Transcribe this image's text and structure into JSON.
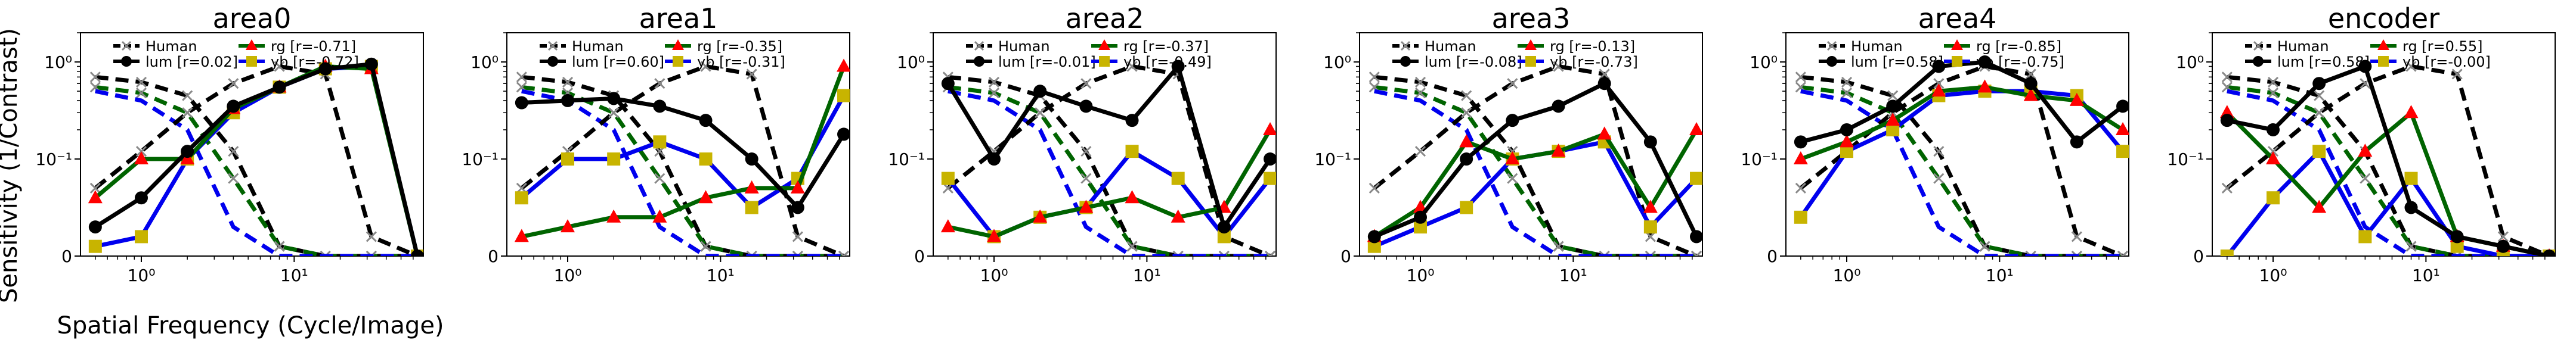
{
  "figure": {
    "ylabel": "Sensitivity (1/Contrast)",
    "xlabel": "Spatial Frequency (Cycle/Image)"
  },
  "style": {
    "human_color": "#000000",
    "human_marker_color": "#888888",
    "lum_color": "#000000",
    "rg_color": "#006400",
    "rg_marker_color": "#ff0000",
    "yb_color": "#0000ee",
    "yb_marker_color": "#c8b400"
  },
  "chart_data": [
    {
      "type": "line",
      "title": "area0",
      "x_scale": "log",
      "y_scale": "symlog",
      "xlim": [
        0.4,
        70
      ],
      "ylim": [
        0,
        2
      ],
      "ytick_labels": [
        "0",
        "10⁻¹",
        "10⁰"
      ],
      "xtick_labels": [
        "10⁰",
        "10¹"
      ],
      "x": [
        0.5,
        1,
        2,
        4,
        8,
        16,
        32,
        64
      ],
      "series": [
        {
          "name": "Human",
          "kind": "human",
          "values": [
            0.07,
            0.12,
            0.3,
            0.6,
            0.9,
            0.75,
            0.02,
            0.0
          ]
        },
        {
          "name": "lum_achrom",
          "kind": "human_lum",
          "values": [
            0.7,
            0.62,
            0.45,
            0.12,
            0.01,
            0.0,
            0.0,
            0.0
          ]
        },
        {
          "name": "rg_human",
          "kind": "human_rg",
          "values": [
            0.55,
            0.48,
            0.3,
            0.08,
            0.01,
            0.0,
            0.0,
            0.0
          ]
        },
        {
          "name": "yb_human",
          "kind": "human_yb",
          "values": [
            0.5,
            0.4,
            0.2,
            0.03,
            0.0,
            0.0,
            0.0,
            0.0
          ]
        },
        {
          "name": "lum [r=0.02]",
          "kind": "lum",
          "values": [
            0.03,
            0.06,
            0.12,
            0.35,
            0.55,
            0.85,
            0.95,
            0.0
          ]
        },
        {
          "name": "rg    [r=-0.71]",
          "kind": "rg",
          "values": [
            0.06,
            0.1,
            0.1,
            0.33,
            0.55,
            0.9,
            0.85,
            0.0
          ]
        },
        {
          "name": "yb    [r=-0.72]",
          "kind": "yb",
          "values": [
            0.01,
            0.02,
            0.1,
            0.3,
            0.55,
            0.85,
            0.9,
            0.0
          ]
        }
      ]
    },
    {
      "type": "line",
      "title": "area1",
      "x_scale": "log",
      "y_scale": "symlog",
      "xlim": [
        0.4,
        70
      ],
      "ylim": [
        0,
        2
      ],
      "ytick_labels": [
        "0",
        "10⁻¹",
        "10⁰"
      ],
      "xtick_labels": [
        "10⁰",
        "10¹"
      ],
      "x": [
        0.5,
        1,
        2,
        4,
        8,
        16,
        32,
        64
      ],
      "series": [
        {
          "name": "Human",
          "kind": "human",
          "values": [
            0.07,
            0.12,
            0.3,
            0.6,
            0.9,
            0.75,
            0.02,
            0.0
          ]
        },
        {
          "name": "lum_achrom",
          "kind": "human_lum",
          "values": [
            0.7,
            0.62,
            0.45,
            0.12,
            0.01,
            0.0,
            0.0,
            0.0
          ]
        },
        {
          "name": "rg_human",
          "kind": "human_rg",
          "values": [
            0.55,
            0.48,
            0.3,
            0.08,
            0.01,
            0.0,
            0.0,
            0.0
          ]
        },
        {
          "name": "yb_human",
          "kind": "human_yb",
          "values": [
            0.5,
            0.4,
            0.2,
            0.03,
            0.0,
            0.0,
            0.0,
            0.0
          ]
        },
        {
          "name": "lum [r=0.60]",
          "kind": "lum",
          "values": [
            0.38,
            0.4,
            0.42,
            0.35,
            0.25,
            0.1,
            0.05,
            0.18
          ]
        },
        {
          "name": "rg    [r=-0.35]",
          "kind": "rg",
          "values": [
            0.02,
            0.03,
            0.04,
            0.04,
            0.06,
            0.07,
            0.07,
            0.9
          ]
        },
        {
          "name": "yb    [r=-0.31]",
          "kind": "yb",
          "values": [
            0.06,
            0.1,
            0.1,
            0.15,
            0.1,
            0.05,
            0.08,
            0.45
          ]
        }
      ]
    },
    {
      "type": "line",
      "title": "area2",
      "x_scale": "log",
      "y_scale": "symlog",
      "xlim": [
        0.4,
        70
      ],
      "ylim": [
        0,
        2
      ],
      "ytick_labels": [
        "0",
        "10⁻¹",
        "10⁰"
      ],
      "xtick_labels": [
        "10⁰",
        "10¹"
      ],
      "x": [
        0.5,
        1,
        2,
        4,
        8,
        16,
        32,
        64
      ],
      "series": [
        {
          "name": "Human",
          "kind": "human",
          "values": [
            0.07,
            0.12,
            0.3,
            0.6,
            0.9,
            0.75,
            0.02,
            0.0
          ]
        },
        {
          "name": "lum_achrom",
          "kind": "human_lum",
          "values": [
            0.7,
            0.62,
            0.45,
            0.12,
            0.01,
            0.0,
            0.0,
            0.0
          ]
        },
        {
          "name": "rg_human",
          "kind": "human_rg",
          "values": [
            0.55,
            0.48,
            0.3,
            0.08,
            0.01,
            0.0,
            0.0,
            0.0
          ]
        },
        {
          "name": "yb_human",
          "kind": "human_yb",
          "values": [
            0.5,
            0.4,
            0.2,
            0.03,
            0.0,
            0.0,
            0.0,
            0.0
          ]
        },
        {
          "name": "lum [r=-0.01]",
          "kind": "lum",
          "values": [
            0.6,
            0.1,
            0.5,
            0.35,
            0.25,
            0.9,
            0.03,
            0.1
          ]
        },
        {
          "name": "rg    [r=-0.37]",
          "kind": "rg",
          "values": [
            0.03,
            0.02,
            0.04,
            0.05,
            0.06,
            0.04,
            0.05,
            0.2
          ]
        },
        {
          "name": "yb    [r=-0.49]",
          "kind": "yb",
          "values": [
            0.08,
            0.02,
            0.04,
            0.05,
            0.12,
            0.08,
            0.02,
            0.08
          ]
        }
      ]
    },
    {
      "type": "line",
      "title": "area3",
      "x_scale": "log",
      "y_scale": "symlog",
      "xlim": [
        0.4,
        70
      ],
      "ylim": [
        0,
        2
      ],
      "ytick_labels": [
        "0",
        "10⁻¹",
        "10⁰"
      ],
      "xtick_labels": [
        "10⁰",
        "10¹"
      ],
      "x": [
        0.5,
        1,
        2,
        4,
        8,
        16,
        32,
        64
      ],
      "series": [
        {
          "name": "Human",
          "kind": "human",
          "values": [
            0.07,
            0.12,
            0.3,
            0.6,
            0.9,
            0.75,
            0.02,
            0.0
          ]
        },
        {
          "name": "lum_achrom",
          "kind": "human_lum",
          "values": [
            0.7,
            0.62,
            0.45,
            0.12,
            0.01,
            0.0,
            0.0,
            0.0
          ]
        },
        {
          "name": "rg_human",
          "kind": "human_rg",
          "values": [
            0.55,
            0.48,
            0.3,
            0.08,
            0.01,
            0.0,
            0.0,
            0.0
          ]
        },
        {
          "name": "yb_human",
          "kind": "human_yb",
          "values": [
            0.5,
            0.4,
            0.2,
            0.03,
            0.0,
            0.0,
            0.0,
            0.0
          ]
        },
        {
          "name": "lum [r=-0.08]",
          "kind": "lum",
          "values": [
            0.02,
            0.04,
            0.1,
            0.25,
            0.35,
            0.6,
            0.15,
            0.02
          ]
        },
        {
          "name": "rg    [r=-0.13]",
          "kind": "rg",
          "values": [
            0.02,
            0.05,
            0.15,
            0.1,
            0.12,
            0.18,
            0.05,
            0.2
          ]
        },
        {
          "name": "yb    [r=-0.73]",
          "kind": "yb",
          "values": [
            0.01,
            0.03,
            0.05,
            0.1,
            0.12,
            0.15,
            0.03,
            0.08
          ]
        }
      ]
    },
    {
      "type": "line",
      "title": "area4",
      "x_scale": "log",
      "y_scale": "symlog",
      "xlim": [
        0.4,
        70
      ],
      "ylim": [
        0,
        2
      ],
      "ytick_labels": [
        "0",
        "10⁻¹",
        "10⁰"
      ],
      "xtick_labels": [
        "10⁰",
        "10¹"
      ],
      "x": [
        0.5,
        1,
        2,
        4,
        8,
        16,
        32,
        64
      ],
      "series": [
        {
          "name": "Human",
          "kind": "human",
          "values": [
            0.07,
            0.12,
            0.3,
            0.6,
            0.9,
            0.75,
            0.02,
            0.0
          ]
        },
        {
          "name": "lum_achrom",
          "kind": "human_lum",
          "values": [
            0.7,
            0.62,
            0.45,
            0.12,
            0.01,
            0.0,
            0.0,
            0.0
          ]
        },
        {
          "name": "rg_human",
          "kind": "human_rg",
          "values": [
            0.55,
            0.48,
            0.3,
            0.08,
            0.01,
            0.0,
            0.0,
            0.0
          ]
        },
        {
          "name": "yb_human",
          "kind": "human_yb",
          "values": [
            0.5,
            0.4,
            0.2,
            0.03,
            0.0,
            0.0,
            0.0,
            0.0
          ]
        },
        {
          "name": "lum [r=0.58]",
          "kind": "lum",
          "values": [
            0.15,
            0.2,
            0.35,
            0.9,
            1.0,
            0.6,
            0.15,
            0.35
          ]
        },
        {
          "name": "rg    [r=-0.85]",
          "kind": "rg",
          "values": [
            0.1,
            0.15,
            0.25,
            0.5,
            0.55,
            0.45,
            0.4,
            0.2
          ]
        },
        {
          "name": "yb    [r=-0.75]",
          "kind": "yb",
          "values": [
            0.04,
            0.12,
            0.2,
            0.45,
            0.5,
            0.5,
            0.45,
            0.12
          ]
        }
      ]
    },
    {
      "type": "line",
      "title": "encoder",
      "x_scale": "log",
      "y_scale": "symlog",
      "xlim": [
        0.4,
        70
      ],
      "ylim": [
        0,
        2
      ],
      "ytick_labels": [
        "0",
        "10⁻¹",
        "10⁰"
      ],
      "xtick_labels": [
        "10⁰",
        "10¹"
      ],
      "x": [
        0.5,
        1,
        2,
        4,
        8,
        16,
        32,
        64
      ],
      "series": [
        {
          "name": "Human",
          "kind": "human",
          "values": [
            0.07,
            0.12,
            0.3,
            0.6,
            0.9,
            0.75,
            0.02,
            0.0
          ]
        },
        {
          "name": "lum_achrom",
          "kind": "human_lum",
          "values": [
            0.7,
            0.62,
            0.45,
            0.12,
            0.01,
            0.0,
            0.0,
            0.0
          ]
        },
        {
          "name": "rg_human",
          "kind": "human_rg",
          "values": [
            0.55,
            0.48,
            0.3,
            0.08,
            0.01,
            0.0,
            0.0,
            0.0
          ]
        },
        {
          "name": "yb_human",
          "kind": "human_yb",
          "values": [
            0.5,
            0.4,
            0.2,
            0.03,
            0.0,
            0.0,
            0.0,
            0.0
          ]
        },
        {
          "name": "lum [r=0.58]",
          "kind": "lum",
          "values": [
            0.25,
            0.2,
            0.6,
            0.9,
            0.05,
            0.02,
            0.01,
            0.0
          ]
        },
        {
          "name": "rg    [r=0.55]",
          "kind": "rg",
          "values": [
            0.3,
            0.1,
            0.05,
            0.12,
            0.3,
            0.02,
            0.01,
            0.0
          ]
        },
        {
          "name": "yb    [r=-0.00]",
          "kind": "yb",
          "values": [
            0.0,
            0.06,
            0.12,
            0.02,
            0.08,
            0.01,
            0.0,
            0.0
          ]
        }
      ]
    }
  ]
}
